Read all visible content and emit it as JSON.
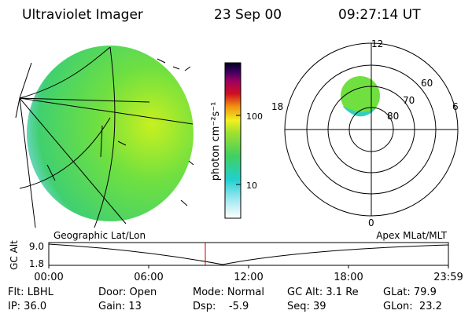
{
  "header": {
    "title": "Ultraviolet Imager",
    "date": "23 Sep 00",
    "time": "09:27:14 UT"
  },
  "colorbar": {
    "label": "photon cm⁻²s⁻¹",
    "ticks": [
      "100",
      "10"
    ]
  },
  "polar": {
    "mlt_labels": [
      "12",
      "18",
      "6",
      "0"
    ],
    "lat_labels": [
      "60",
      "70",
      "80"
    ]
  },
  "altitude_plot": {
    "left_title": "Geographic Lat/Lon",
    "right_title": "Apex MLat/MLT",
    "ylabel": "GC Alt",
    "yticks": [
      "9.0",
      "1.8"
    ],
    "xticks": [
      "00:00",
      "06:00",
      "12:00",
      "18:00",
      "23:59"
    ]
  },
  "info": [
    [
      "Flt: LBHL",
      "Door: Open",
      "Mode: Normal",
      "GC Alt: 3.1 Re",
      "GLat: 79.9"
    ],
    [
      "IP: 36.0",
      "Gain: 13",
      "Dsp:    -5.9",
      "Seq: 39",
      "GLon:  23.2"
    ]
  ]
}
